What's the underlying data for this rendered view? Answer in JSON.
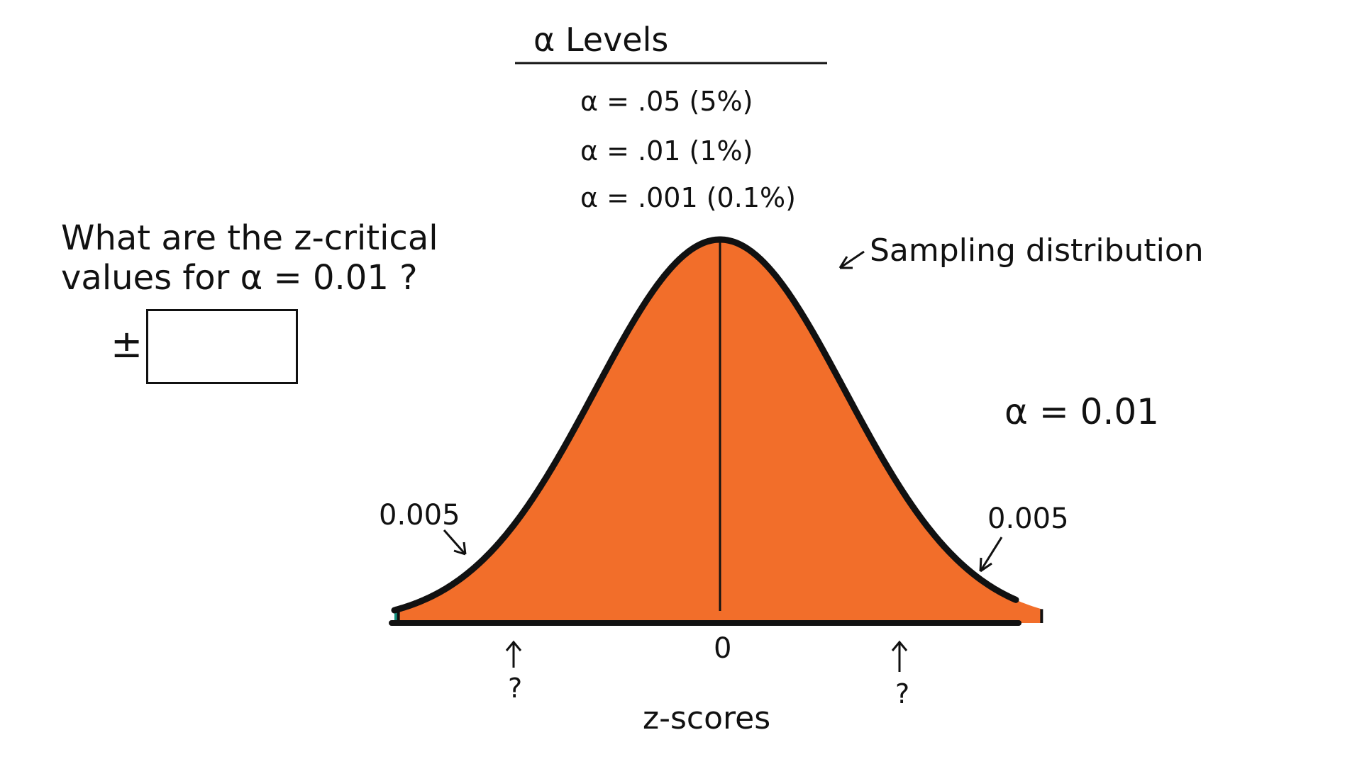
{
  "alpha_levels": {
    "heading": "α Levels",
    "items": [
      "α = .05 (5%)",
      "α = .01 (1%)",
      "α = .001 (0.1%)"
    ]
  },
  "question": {
    "line1": "What are the z-critical",
    "line2": "values for α = 0.01 ?",
    "plus_minus": "±",
    "answer_value": ""
  },
  "diagram": {
    "sampling_label": "Sampling distribution",
    "alpha_label": "α = 0.01",
    "left_tail_label": "0.005",
    "right_tail_label": "0.005",
    "center_label": "0",
    "left_critical_label": "?",
    "right_critical_label": "?",
    "axis_label": "z-scores",
    "left_tail_area": 0.005,
    "right_tail_area": 0.005,
    "colors": {
      "body": "#F26E2A",
      "tail": "#15907E",
      "outline": "#111111"
    }
  }
}
